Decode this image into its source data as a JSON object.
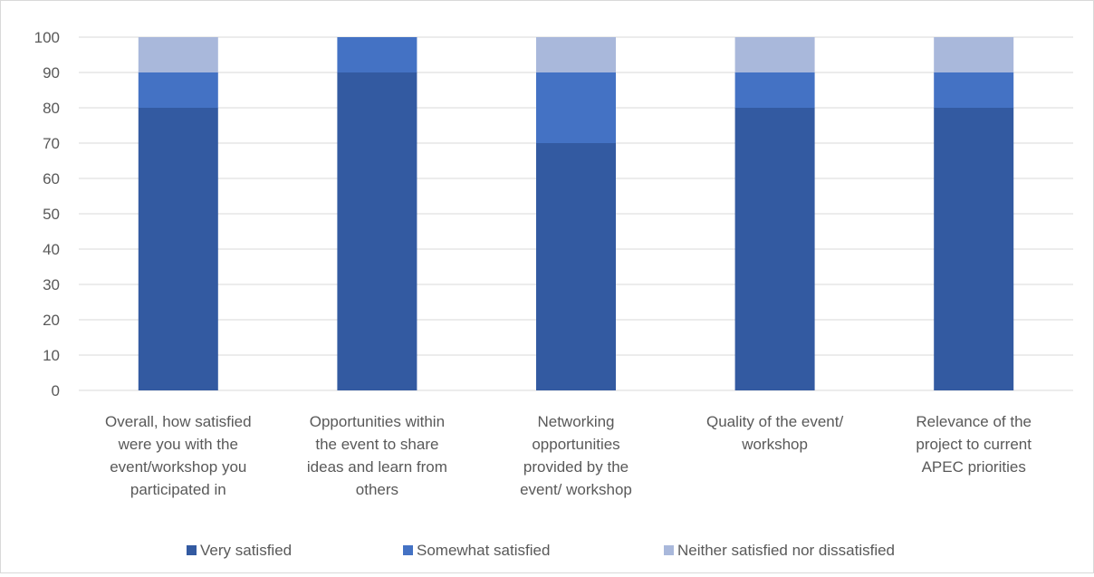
{
  "chart_data": {
    "type": "bar",
    "stacked": true,
    "title": "",
    "xlabel": "",
    "ylabel": "",
    "ylim": [
      0,
      100
    ],
    "y_ticks": [
      0,
      10,
      20,
      30,
      40,
      50,
      60,
      70,
      80,
      90,
      100
    ],
    "grid": "horizontal",
    "legend_position": "bottom",
    "categories": [
      [
        "Overall, how satisfied",
        "were you with the",
        "event/workshop you",
        "participated in"
      ],
      [
        "Opportunities within",
        "the event to share",
        "ideas and learn from",
        "others"
      ],
      [
        "Networking",
        "opportunities",
        "provided by the",
        "event/ workshop"
      ],
      [
        "Quality of the event/",
        "workshop"
      ],
      [
        "Relevance of the",
        "project to current",
        "APEC priorities"
      ]
    ],
    "series": [
      {
        "name": "Very satisfied",
        "color": "#335AA1",
        "values": [
          80,
          90,
          70,
          80,
          80
        ]
      },
      {
        "name": "Somewhat satisfied",
        "color": "#4472C4",
        "values": [
          10,
          10,
          20,
          10,
          10
        ]
      },
      {
        "name": "Neither satisfied nor dissatisfied",
        "color": "#A9B8DB",
        "values": [
          10,
          0,
          10,
          10,
          10
        ]
      }
    ]
  }
}
